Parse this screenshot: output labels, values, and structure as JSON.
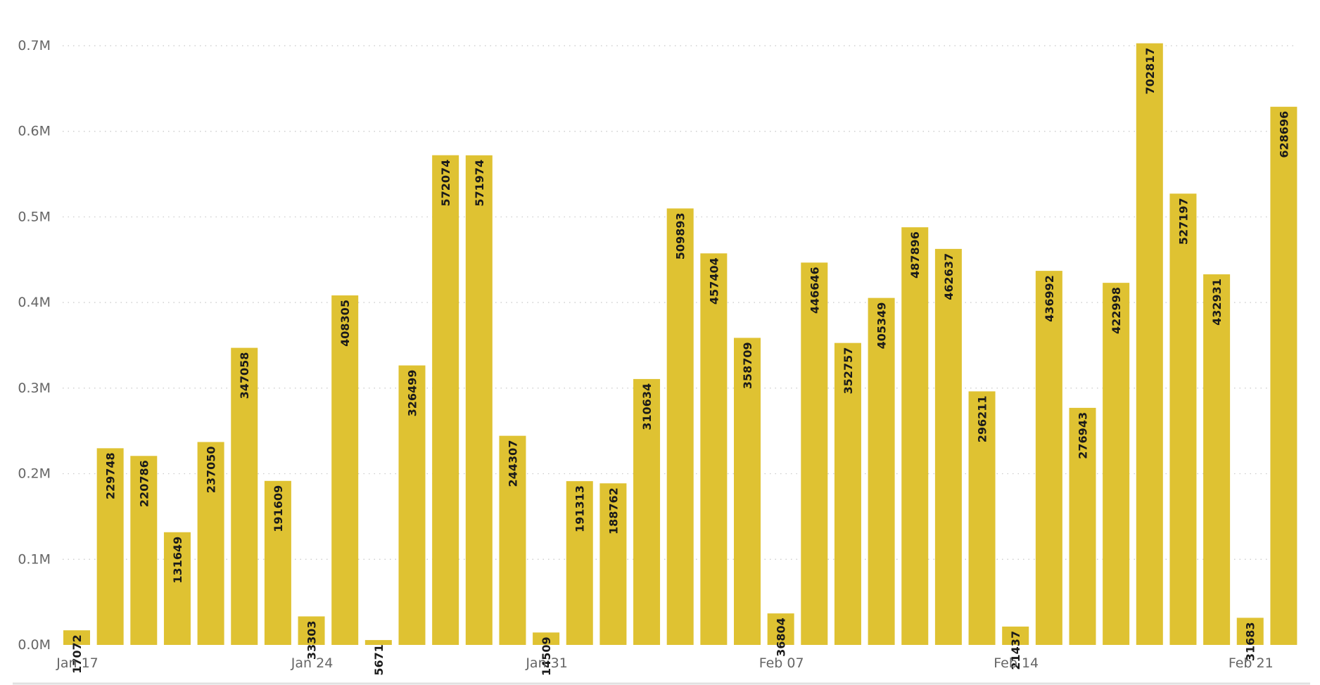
{
  "colors": {
    "bar": "#DFC232",
    "grid": "#c8c8c8",
    "tick_text": "#666666",
    "label_text": "#1a1a1a"
  },
  "chart_data": {
    "type": "bar",
    "title": "",
    "xlabel": "",
    "ylabel": "",
    "ylim": [
      0,
      700000
    ],
    "grid": true,
    "y_ticks": [
      {
        "value": 0,
        "label": "0.0M"
      },
      {
        "value": 100000,
        "label": "0.1M"
      },
      {
        "value": 200000,
        "label": "0.2M"
      },
      {
        "value": 300000,
        "label": "0.3M"
      },
      {
        "value": 400000,
        "label": "0.4M"
      },
      {
        "value": 500000,
        "label": "0.5M"
      },
      {
        "value": 600000,
        "label": "0.6M"
      },
      {
        "value": 700000,
        "label": "0.7M"
      }
    ],
    "x_ticks": [
      {
        "index": 0,
        "label": "Jan 17"
      },
      {
        "index": 7,
        "label": "Jan 24"
      },
      {
        "index": 14,
        "label": "Jan 31"
      },
      {
        "index": 21,
        "label": "Feb 07"
      },
      {
        "index": 28,
        "label": "Feb 14"
      },
      {
        "index": 35,
        "label": "Feb 21"
      }
    ],
    "categories": [
      "2021-01-17",
      "2021-01-18",
      "2021-01-19",
      "2021-01-20",
      "2021-01-21",
      "2021-01-22",
      "2021-01-23",
      "2021-01-24",
      "2021-01-25",
      "2021-01-26",
      "2021-01-27",
      "2021-01-28",
      "2021-01-29",
      "2021-01-30",
      "2021-01-31",
      "2021-02-01",
      "2021-02-02",
      "2021-02-03",
      "2021-02-04",
      "2021-02-05",
      "2021-02-06",
      "2021-02-07",
      "2021-02-08",
      "2021-02-09",
      "2021-02-10",
      "2021-02-11",
      "2021-02-12",
      "2021-02-13",
      "2021-02-14",
      "2021-02-15",
      "2021-02-16",
      "2021-02-17",
      "2021-02-18",
      "2021-02-19",
      "2021-02-20",
      "2021-02-21",
      "2021-02-22"
    ],
    "values": [
      17072,
      229748,
      220786,
      131649,
      237050,
      347058,
      191609,
      33303,
      408305,
      5671,
      326499,
      572074,
      571974,
      244307,
      14509,
      191313,
      188762,
      310634,
      509893,
      457404,
      358709,
      36804,
      446646,
      352757,
      405349,
      487896,
      462637,
      296211,
      21437,
      436992,
      276943,
      422998,
      702817,
      527197,
      432931,
      31683,
      628696
    ]
  }
}
